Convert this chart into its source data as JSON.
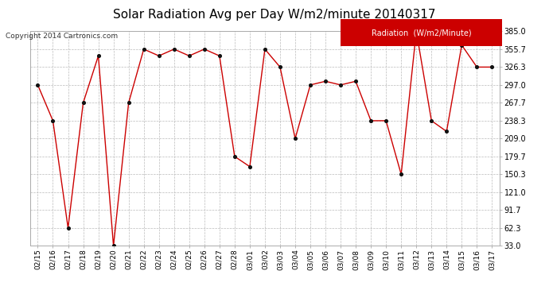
{
  "title": "Solar Radiation Avg per Day W/m2/minute 20140317",
  "copyright": "Copyright 2014 Cartronics.com",
  "legend_label": "Radiation  (W/m2/Minute)",
  "dates": [
    "02/15",
    "02/16",
    "02/17",
    "02/18",
    "02/19",
    "02/20",
    "02/21",
    "02/22",
    "02/23",
    "02/24",
    "02/25",
    "02/26",
    "02/27",
    "02/28",
    "03/01",
    "03/02",
    "03/03",
    "03/04",
    "03/05",
    "03/06",
    "03/07",
    "03/08",
    "03/09",
    "03/10",
    "03/11",
    "03/12",
    "03/13",
    "03/14",
    "03/15",
    "03/16",
    "03/17"
  ],
  "values": [
    297.0,
    238.3,
    62.3,
    267.7,
    344.7,
    33.0,
    267.7,
    355.7,
    344.7,
    355.7,
    344.7,
    355.7,
    344.7,
    179.7,
    163.0,
    355.7,
    326.3,
    209.0,
    297.0,
    303.0,
    297.0,
    303.0,
    238.3,
    238.3,
    150.3,
    385.0,
    238.3,
    220.7,
    362.3,
    326.3,
    326.3
  ],
  "line_color": "#cc0000",
  "marker_color": "#111111",
  "bg_color": "#ffffff",
  "grid_color": "#bbbbbb",
  "yticks": [
    33.0,
    62.3,
    91.7,
    121.0,
    150.3,
    179.7,
    209.0,
    238.3,
    267.7,
    297.0,
    326.3,
    355.7,
    385.0
  ],
  "ymin": 33.0,
  "ymax": 385.0,
  "legend_bg": "#cc0000",
  "legend_text_color": "#ffffff",
  "title_fontsize": 11,
  "tick_fontsize": 7,
  "copyright_fontsize": 6.5
}
